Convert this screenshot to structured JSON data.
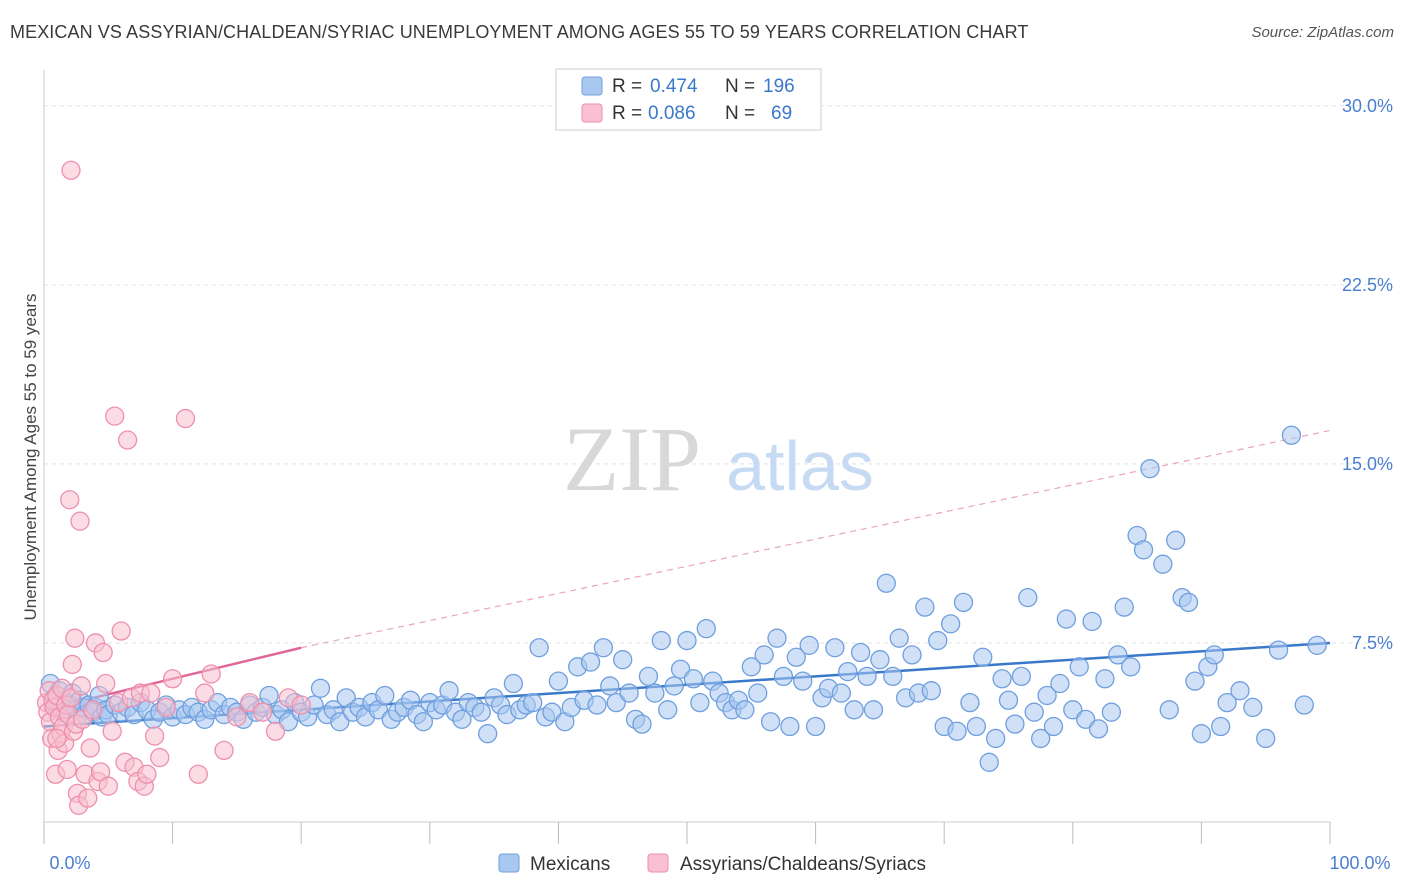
{
  "header": {
    "title": "MEXICAN VS ASSYRIAN/CHALDEAN/SYRIAC UNEMPLOYMENT AMONG AGES 55 TO 59 YEARS CORRELATION CHART",
    "source": "Source: ZipAtlas.com"
  },
  "watermark": {
    "zip": "ZIP",
    "atlas": "atlas"
  },
  "legend_top": {
    "rows": [
      {
        "r_label": "R =",
        "r_value": "0.474",
        "n_label": "N =",
        "n_value": "196",
        "color": "#a9c8f0",
        "stroke": "#6f9fde"
      },
      {
        "r_label": "R =",
        "r_value": "0.086",
        "n_label": "N =",
        "n_value": "69",
        "color": "#f8c0d0",
        "stroke": "#ee8fac"
      }
    ]
  },
  "legend_bottom": {
    "items": [
      {
        "label": "Mexicans",
        "color": "#a9c8f0",
        "stroke": "#6f9fde"
      },
      {
        "label": "Assyrians/Chaldeans/Syriacs",
        "color": "#f8c0d0",
        "stroke": "#ee8fac"
      }
    ]
  },
  "chart_data": {
    "type": "scatter",
    "title": "MEXICAN VS ASSYRIAN/CHALDEAN/SYRIAC UNEMPLOYMENT AMONG AGES 55 TO 59 YEARS CORRELATION CHART",
    "xlabel": "",
    "ylabel": "Unemployment Among Ages 55 to 59 years",
    "x_tick_labels": [
      "0.0%",
      "100.0%"
    ],
    "y_tick_labels": [
      "7.5%",
      "15.0%",
      "22.5%",
      "30.0%"
    ],
    "y_ticks": [
      7.5,
      15.0,
      22.5,
      30.0
    ],
    "xlim": [
      0,
      100
    ],
    "ylim": [
      0,
      31.5
    ],
    "grid": true,
    "colors": {
      "blue": "#3a78c9",
      "pink": "#e0669a",
      "axis_text": "#4a7fcf"
    },
    "series": [
      {
        "name": "Mexicans",
        "r": 0.474,
        "n": 196,
        "color": "#6f9fde",
        "fill": "#a9c8f0",
        "trend": {
          "x": [
            0,
            100
          ],
          "y": [
            4.0,
            7.5
          ],
          "dashed": false
        },
        "points": [
          [
            0.5,
            5.8
          ],
          [
            0.8,
            5.2
          ],
          [
            1.0,
            4.8
          ],
          [
            1.2,
            5.5
          ],
          [
            1.5,
            4.6
          ],
          [
            1.8,
            5.0
          ],
          [
            2.0,
            4.9
          ],
          [
            2.2,
            5.4
          ],
          [
            2.5,
            4.7
          ],
          [
            2.8,
            5.1
          ],
          [
            3.0,
            4.8
          ],
          [
            3.2,
            4.5
          ],
          [
            3.5,
            4.9
          ],
          [
            3.8,
            4.6
          ],
          [
            4.0,
            4.8
          ],
          [
            4.3,
            5.3
          ],
          [
            4.5,
            4.4
          ],
          [
            4.8,
            4.7
          ],
          [
            5.0,
            4.5
          ],
          [
            5.5,
            4.9
          ],
          [
            6.0,
            4.6
          ],
          [
            6.5,
            4.8
          ],
          [
            7.0,
            4.5
          ],
          [
            7.5,
            5.0
          ],
          [
            8.0,
            4.7
          ],
          [
            8.5,
            4.3
          ],
          [
            9.0,
            4.6
          ],
          [
            9.5,
            4.9
          ],
          [
            10,
            4.4
          ],
          [
            10.5,
            4.7
          ],
          [
            11,
            4.5
          ],
          [
            11.5,
            4.8
          ],
          [
            12,
            4.6
          ],
          [
            12.5,
            4.3
          ],
          [
            13,
            4.7
          ],
          [
            13.5,
            5.0
          ],
          [
            14,
            4.5
          ],
          [
            14.5,
            4.8
          ],
          [
            15,
            4.6
          ],
          [
            15.5,
            4.3
          ],
          [
            16,
            4.9
          ],
          [
            16.5,
            4.6
          ],
          [
            17,
            4.8
          ],
          [
            17.5,
            5.3
          ],
          [
            18,
            4.5
          ],
          [
            18.5,
            4.7
          ],
          [
            19,
            4.2
          ],
          [
            19.5,
            5.0
          ],
          [
            20,
            4.6
          ],
          [
            20.5,
            4.4
          ],
          [
            21,
            4.9
          ],
          [
            21.5,
            5.6
          ],
          [
            22,
            4.5
          ],
          [
            22.5,
            4.7
          ],
          [
            23,
            4.2
          ],
          [
            23.5,
            5.2
          ],
          [
            24,
            4.6
          ],
          [
            24.5,
            4.8
          ],
          [
            25,
            4.4
          ],
          [
            25.5,
            5.0
          ],
          [
            26,
            4.7
          ],
          [
            26.5,
            5.3
          ],
          [
            27,
            4.3
          ],
          [
            27.5,
            4.6
          ],
          [
            28,
            4.8
          ],
          [
            28.5,
            5.1
          ],
          [
            29,
            4.5
          ],
          [
            29.5,
            4.2
          ],
          [
            30,
            5.0
          ],
          [
            30.5,
            4.7
          ],
          [
            31,
            4.9
          ],
          [
            31.5,
            5.5
          ],
          [
            32,
            4.6
          ],
          [
            32.5,
            4.3
          ],
          [
            33,
            5.0
          ],
          [
            33.5,
            4.8
          ],
          [
            34,
            4.6
          ],
          [
            34.5,
            3.7
          ],
          [
            35,
            5.2
          ],
          [
            35.5,
            4.9
          ],
          [
            36,
            4.5
          ],
          [
            36.5,
            5.8
          ],
          [
            37,
            4.7
          ],
          [
            37.5,
            4.9
          ],
          [
            38,
            5.0
          ],
          [
            38.5,
            7.3
          ],
          [
            39,
            4.4
          ],
          [
            39.5,
            4.6
          ],
          [
            40,
            5.9
          ],
          [
            40.5,
            4.2
          ],
          [
            41,
            4.8
          ],
          [
            41.5,
            6.5
          ],
          [
            42,
            5.1
          ],
          [
            42.5,
            6.7
          ],
          [
            43,
            4.9
          ],
          [
            43.5,
            7.3
          ],
          [
            44,
            5.7
          ],
          [
            44.5,
            5.0
          ],
          [
            45,
            6.8
          ],
          [
            45.5,
            5.4
          ],
          [
            46,
            4.3
          ],
          [
            46.5,
            4.1
          ],
          [
            47,
            6.1
          ],
          [
            47.5,
            5.4
          ],
          [
            48,
            7.6
          ],
          [
            48.5,
            4.7
          ],
          [
            49,
            5.7
          ],
          [
            49.5,
            6.4
          ],
          [
            50,
            7.6
          ],
          [
            50.5,
            6.0
          ],
          [
            51,
            5.0
          ],
          [
            51.5,
            8.1
          ],
          [
            52,
            5.9
          ],
          [
            52.5,
            5.4
          ],
          [
            53,
            5.0
          ],
          [
            53.5,
            4.7
          ],
          [
            54,
            5.1
          ],
          [
            54.5,
            4.7
          ],
          [
            55,
            6.5
          ],
          [
            55.5,
            5.4
          ],
          [
            56,
            7.0
          ],
          [
            56.5,
            4.2
          ],
          [
            57,
            7.7
          ],
          [
            57.5,
            6.1
          ],
          [
            58,
            4.0
          ],
          [
            58.5,
            6.9
          ],
          [
            59,
            5.9
          ],
          [
            59.5,
            7.4
          ],
          [
            60,
            4.0
          ],
          [
            60.5,
            5.2
          ],
          [
            61,
            5.6
          ],
          [
            61.5,
            7.3
          ],
          [
            62,
            5.4
          ],
          [
            62.5,
            6.3
          ],
          [
            63,
            4.7
          ],
          [
            63.5,
            7.1
          ],
          [
            64,
            6.1
          ],
          [
            64.5,
            4.7
          ],
          [
            65,
            6.8
          ],
          [
            65.5,
            10.0
          ],
          [
            66,
            6.1
          ],
          [
            66.5,
            7.7
          ],
          [
            67,
            5.2
          ],
          [
            67.5,
            7.0
          ],
          [
            68,
            5.4
          ],
          [
            68.5,
            9.0
          ],
          [
            69,
            5.5
          ],
          [
            69.5,
            7.6
          ],
          [
            70,
            4.0
          ],
          [
            70.5,
            8.3
          ],
          [
            71,
            3.8
          ],
          [
            71.5,
            9.2
          ],
          [
            72,
            5.0
          ],
          [
            72.5,
            4.0
          ],
          [
            73,
            6.9
          ],
          [
            73.5,
            2.5
          ],
          [
            74,
            3.5
          ],
          [
            74.5,
            6.0
          ],
          [
            75,
            5.1
          ],
          [
            75.5,
            4.1
          ],
          [
            76,
            6.1
          ],
          [
            76.5,
            9.4
          ],
          [
            77,
            4.6
          ],
          [
            77.5,
            3.5
          ],
          [
            78,
            5.3
          ],
          [
            78.5,
            4.0
          ],
          [
            79,
            5.8
          ],
          [
            79.5,
            8.5
          ],
          [
            80,
            4.7
          ],
          [
            80.5,
            6.5
          ],
          [
            81,
            4.3
          ],
          [
            81.5,
            8.4
          ],
          [
            82,
            3.9
          ],
          [
            82.5,
            6.0
          ],
          [
            83,
            4.6
          ],
          [
            83.5,
            7.0
          ],
          [
            84,
            9.0
          ],
          [
            84.5,
            6.5
          ],
          [
            85,
            12.0
          ],
          [
            85.5,
            11.4
          ],
          [
            86,
            14.8
          ],
          [
            87,
            10.8
          ],
          [
            87.5,
            4.7
          ],
          [
            88,
            11.8
          ],
          [
            88.5,
            9.4
          ],
          [
            89,
            9.2
          ],
          [
            89.5,
            5.9
          ],
          [
            90,
            3.7
          ],
          [
            90.5,
            6.5
          ],
          [
            91,
            7.0
          ],
          [
            91.5,
            4.0
          ],
          [
            92,
            5.0
          ],
          [
            93,
            5.5
          ],
          [
            94,
            4.8
          ],
          [
            95,
            3.5
          ],
          [
            96,
            7.2
          ],
          [
            97,
            16.2
          ],
          [
            98,
            4.9
          ],
          [
            99,
            7.4
          ]
        ]
      },
      {
        "name": "Assyrians/Chaldeans/Syriacs",
        "r": 0.086,
        "n": 69,
        "color": "#ee8fac",
        "fill": "#f8c0d0",
        "trend": {
          "x": [
            0,
            20
          ],
          "y": [
            4.7,
            7.3
          ],
          "dashed": false
        },
        "trend_extended": {
          "x": [
            20,
            100
          ],
          "y": [
            7.3,
            16.4
          ],
          "dashed": true
        },
        "points": [
          [
            0.2,
            5.0
          ],
          [
            0.3,
            4.6
          ],
          [
            0.4,
            5.5
          ],
          [
            0.5,
            4.2
          ],
          [
            0.6,
            3.5
          ],
          [
            0.7,
            5.1
          ],
          [
            0.8,
            4.8
          ],
          [
            0.9,
            2.0
          ],
          [
            1.0,
            5.3
          ],
          [
            1.1,
            3.0
          ],
          [
            1.2,
            4.4
          ],
          [
            1.3,
            3.7
          ],
          [
            1.4,
            5.6
          ],
          [
            1.5,
            4.0
          ],
          [
            1.6,
            3.3
          ],
          [
            1.7,
            4.9
          ],
          [
            1.8,
            2.2
          ],
          [
            1.9,
            4.5
          ],
          [
            2.0,
            13.5
          ],
          [
            2.1,
            5.2
          ],
          [
            2.2,
            6.6
          ],
          [
            2.3,
            3.8
          ],
          [
            2.4,
            7.7
          ],
          [
            2.5,
            4.1
          ],
          [
            2.6,
            1.2
          ],
          [
            2.7,
            0.7
          ],
          [
            2.8,
            12.6
          ],
          [
            2.9,
            5.7
          ],
          [
            3.0,
            4.3
          ],
          [
            3.2,
            2.0
          ],
          [
            3.4,
            1.0
          ],
          [
            3.6,
            3.1
          ],
          [
            3.8,
            4.7
          ],
          [
            4.0,
            7.5
          ],
          [
            4.2,
            1.7
          ],
          [
            4.4,
            2.1
          ],
          [
            4.6,
            7.1
          ],
          [
            4.8,
            5.8
          ],
          [
            5.0,
            1.5
          ],
          [
            5.3,
            3.8
          ],
          [
            5.5,
            17.0
          ],
          [
            5.8,
            5.0
          ],
          [
            6.0,
            8.0
          ],
          [
            6.3,
            2.5
          ],
          [
            6.5,
            16.0
          ],
          [
            6.8,
            5.2
          ],
          [
            7.0,
            2.3
          ],
          [
            7.3,
            1.7
          ],
          [
            7.5,
            5.4
          ],
          [
            7.8,
            1.5
          ],
          [
            8.0,
            2.0
          ],
          [
            8.3,
            5.4
          ],
          [
            8.6,
            3.6
          ],
          [
            9.0,
            2.7
          ],
          [
            9.5,
            4.8
          ],
          [
            10.0,
            6.0
          ],
          [
            11.0,
            16.9
          ],
          [
            12.0,
            2.0
          ],
          [
            12.5,
            5.4
          ],
          [
            13.0,
            6.2
          ],
          [
            14.0,
            3.0
          ],
          [
            15.0,
            4.4
          ],
          [
            16.0,
            5.0
          ],
          [
            17.0,
            4.6
          ],
          [
            18.0,
            3.8
          ],
          [
            19.0,
            5.2
          ],
          [
            20.0,
            4.9
          ],
          [
            2.1,
            27.3
          ],
          [
            1.0,
            3.5
          ]
        ]
      }
    ]
  }
}
